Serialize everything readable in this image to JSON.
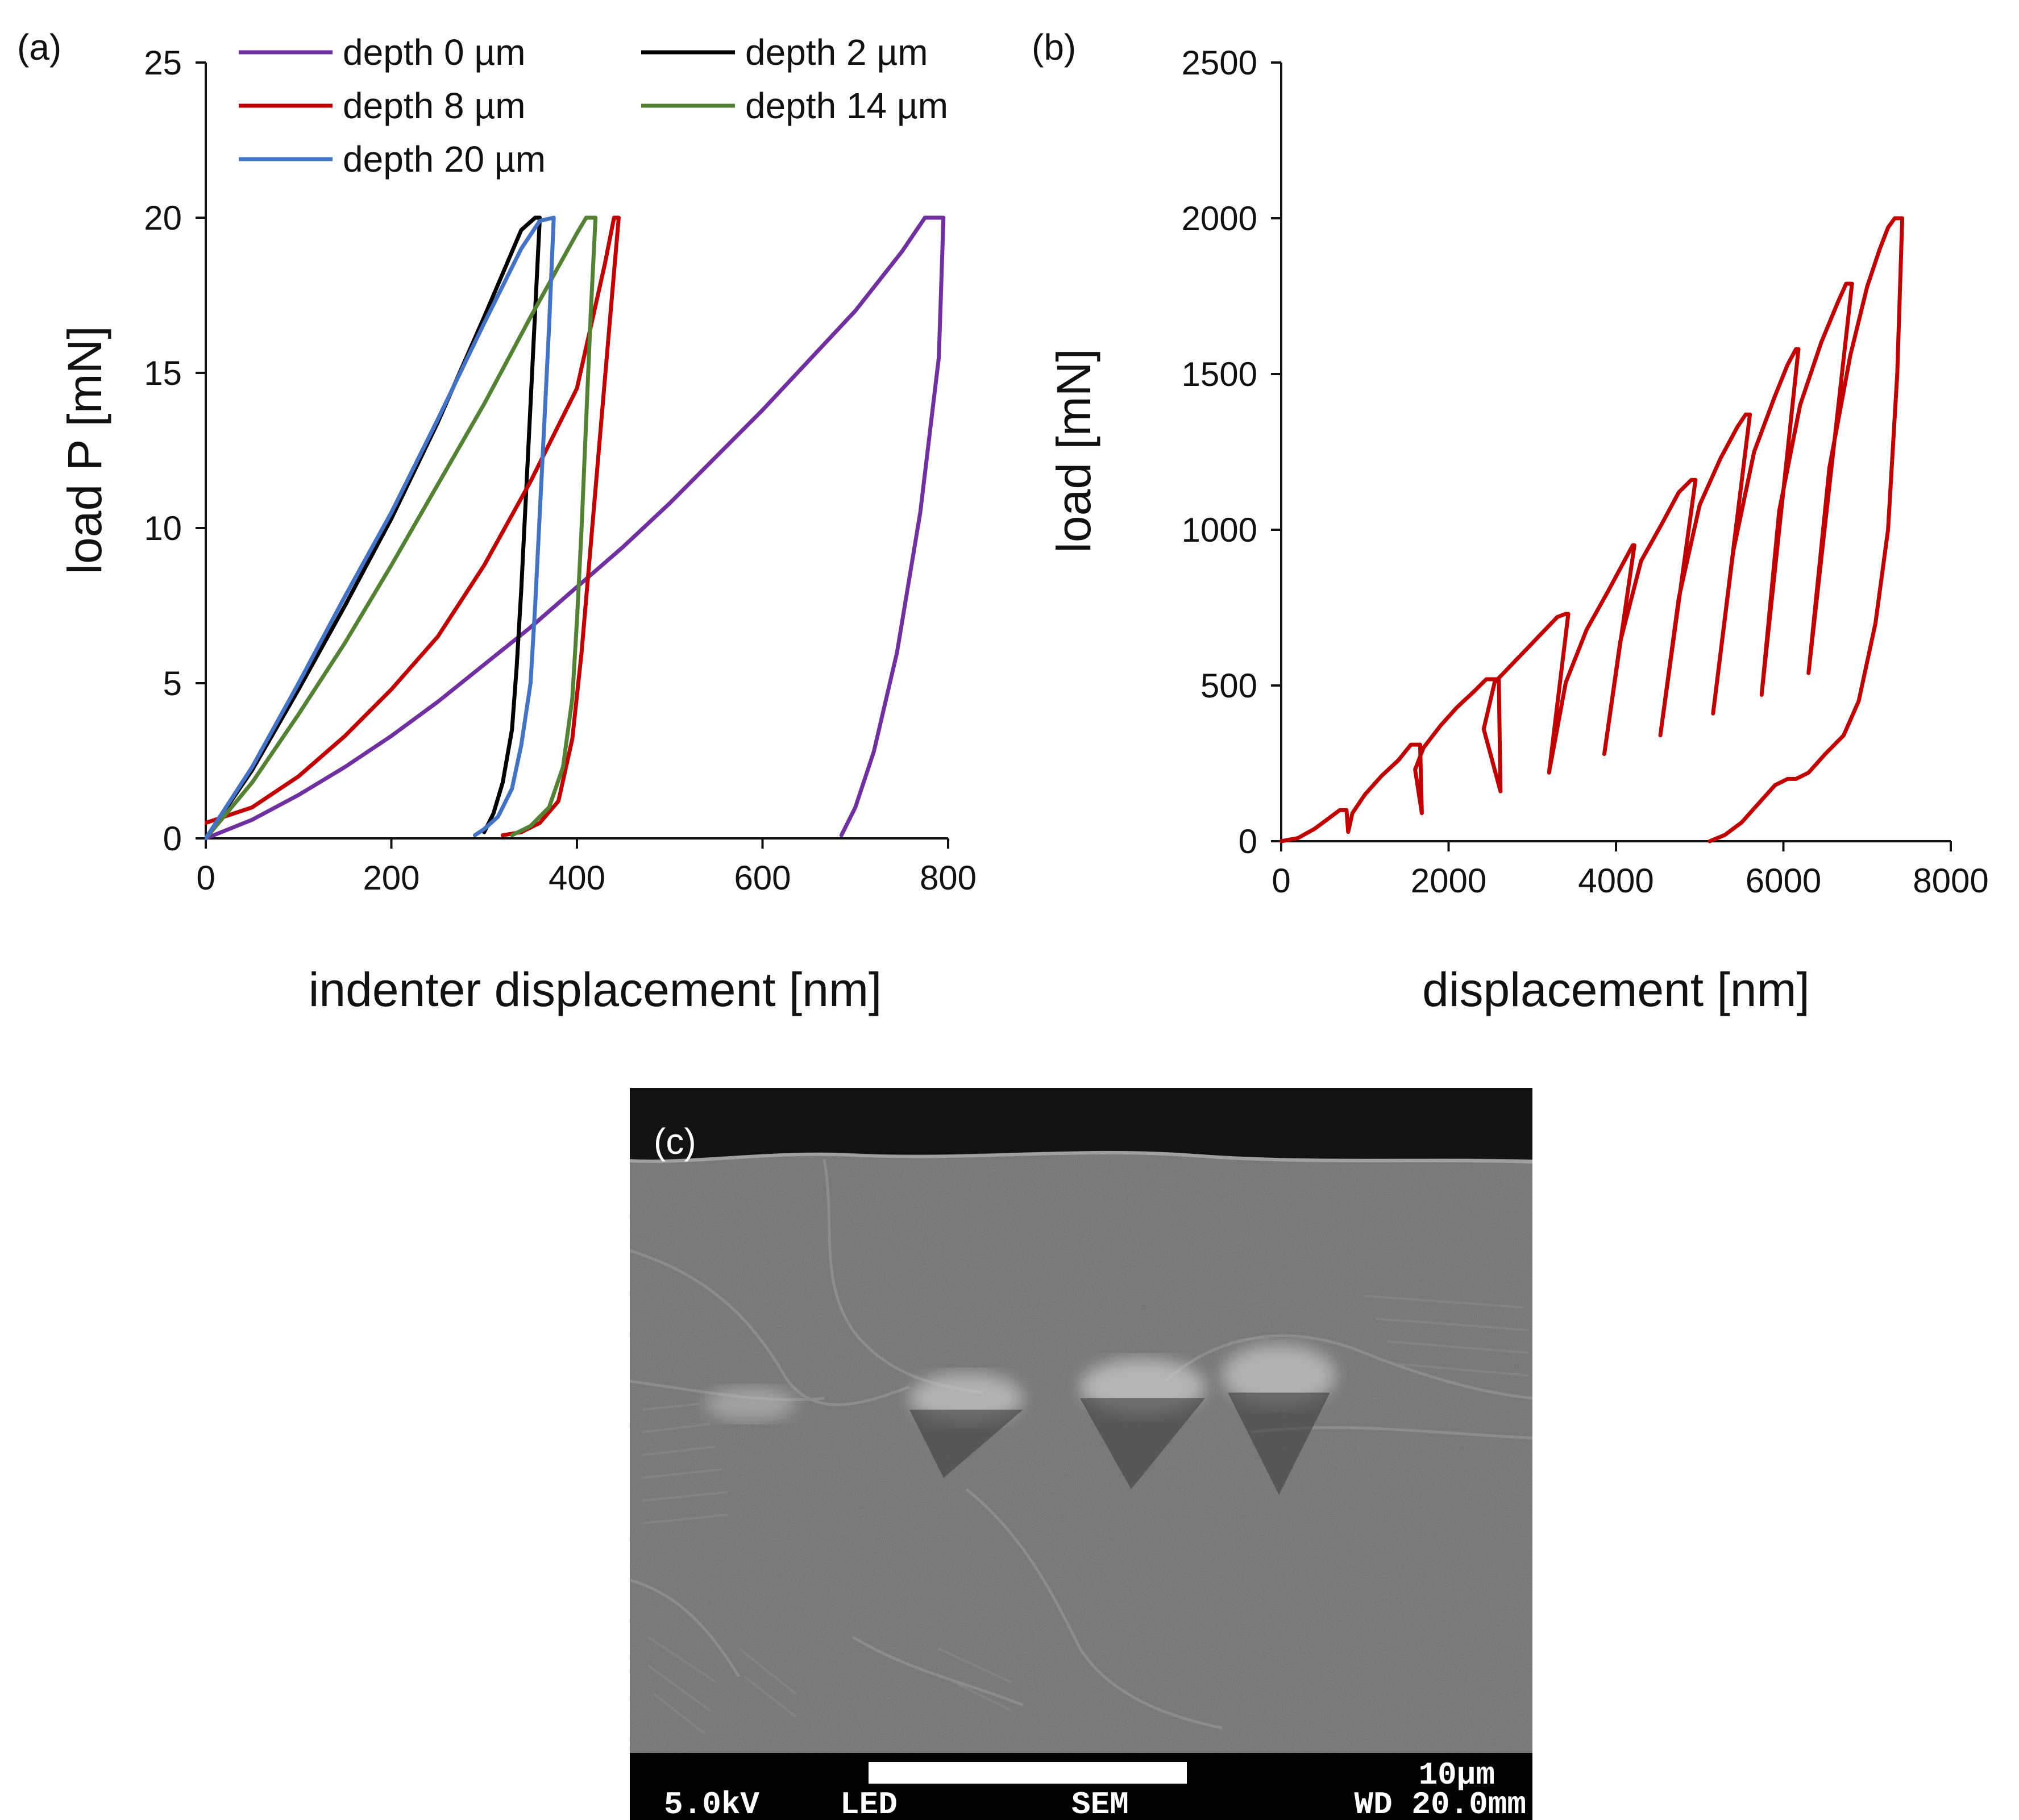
{
  "colors": {
    "depth0": "#7030a0",
    "depth2": "#000000",
    "depth8": "#c00000",
    "depth14": "#548235",
    "depth20": "#4472c4",
    "panel_b": "#c00000"
  },
  "chart_data": [
    {
      "type": "line",
      "panel_label": "(a)",
      "xlabel": "indenter displacement [nm]",
      "ylabel": "load P [mN]",
      "xlim": [
        0,
        800
      ],
      "ylim": [
        0,
        25
      ],
      "xticks": [
        "0",
        "200",
        "400",
        "600",
        "800"
      ],
      "yticks": [
        "0",
        "5",
        "10",
        "15",
        "20",
        "25"
      ],
      "grid": false,
      "legend_position": "top-left",
      "series": [
        {
          "name": "depth 0 µm",
          "color_key": "depth0",
          "x": [
            0,
            50,
            100,
            150,
            200,
            250,
            300,
            350,
            400,
            450,
            500,
            550,
            600,
            650,
            700,
            750,
            775,
            795,
            790,
            770,
            745,
            720,
            700,
            685
          ],
          "y": [
            0,
            0.6,
            1.4,
            2.3,
            3.3,
            4.4,
            5.6,
            6.8,
            8.1,
            9.4,
            10.8,
            12.3,
            13.8,
            15.4,
            17.0,
            18.9,
            20.0,
            20.0,
            15.5,
            10.5,
            6.0,
            2.8,
            1.0,
            0.1
          ]
        },
        {
          "name": "depth 2 µm",
          "color_key": "depth2",
          "x": [
            0,
            50,
            100,
            150,
            200,
            250,
            300,
            340,
            355,
            360,
            355,
            350,
            345,
            340,
            335,
            330,
            320,
            310,
            300
          ],
          "y": [
            0,
            2.2,
            4.8,
            7.5,
            10.3,
            13.4,
            16.8,
            19.6,
            20.0,
            20.0,
            17.0,
            14.0,
            11.0,
            8.0,
            5.5,
            3.5,
            1.8,
            0.8,
            0.2
          ]
        },
        {
          "name": "depth 8 µm",
          "color_key": "depth8",
          "x": [
            0,
            50,
            100,
            150,
            200,
            250,
            300,
            350,
            400,
            430,
            440,
            445,
            435,
            425,
            415,
            405,
            395,
            380,
            360,
            340,
            320
          ],
          "y": [
            0.5,
            1.0,
            2.0,
            3.3,
            4.8,
            6.5,
            8.8,
            11.5,
            14.5,
            18.5,
            20.0,
            20.0,
            16.5,
            13.0,
            9.5,
            6.0,
            3.2,
            1.2,
            0.5,
            0.2,
            0.1
          ]
        },
        {
          "name": "depth 14 µm",
          "color_key": "depth14",
          "x": [
            0,
            50,
            100,
            150,
            200,
            250,
            300,
            350,
            400,
            410,
            420,
            415,
            410,
            405,
            400,
            395,
            385,
            370,
            350,
            330
          ],
          "y": [
            0,
            1.8,
            4.0,
            6.3,
            8.8,
            11.4,
            14.0,
            16.8,
            19.5,
            20.0,
            20.0,
            17.0,
            13.5,
            10.0,
            7.0,
            4.5,
            2.3,
            1.0,
            0.4,
            0.1
          ]
        },
        {
          "name": "depth 20 µm",
          "color_key": "depth20",
          "x": [
            0,
            50,
            100,
            150,
            200,
            250,
            300,
            340,
            360,
            375,
            375,
            370,
            365,
            360,
            355,
            350,
            340,
            330,
            315,
            300,
            290
          ],
          "y": [
            0,
            2.3,
            5.0,
            7.8,
            10.5,
            13.5,
            16.6,
            19.0,
            19.9,
            20.0,
            20.0,
            16.5,
            13.5,
            10.5,
            7.5,
            5.0,
            3.0,
            1.6,
            0.7,
            0.3,
            0.1
          ]
        }
      ]
    },
    {
      "type": "line",
      "panel_label": "(b)",
      "xlabel": "displacement [nm]",
      "ylabel": "load [mN]",
      "xlim": [
        0,
        8000
      ],
      "ylim": [
        0,
        2500
      ],
      "xticks": [
        "0",
        "2000",
        "4000",
        "6000",
        "8000"
      ],
      "yticks": [
        "0",
        "500",
        "1000",
        "1500",
        "2000",
        "2500"
      ],
      "grid": false,
      "series": [
        {
          "color_key": "panel_b",
          "x": [
            0,
            200,
            400,
            600,
            700,
            780,
            800,
            850,
            1000,
            1200,
            1400,
            1550,
            1660,
            1680,
            1600,
            1700,
            1900,
            2100,
            2300,
            2450,
            2600,
            2620,
            2420,
            2550,
            2800,
            3050,
            3300,
            3400,
            3430,
            3200,
            3400,
            3650,
            3900,
            4100,
            4200,
            4220,
            3860,
            4050,
            4300,
            4550,
            4750,
            4900,
            4950,
            4530,
            4750,
            5000,
            5250,
            5450,
            5550,
            5600,
            5160,
            5400,
            5650,
            5900,
            6050,
            6150,
            6180,
            5740,
            5950,
            6200,
            6450,
            6650,
            6750,
            6820,
            6300,
            6550,
            6800,
            7000,
            7150,
            7250,
            7330,
            7400,
            7420,
            7360,
            7250,
            7100,
            6900,
            6720,
            6500,
            6300,
            6150,
            6050,
            5900,
            5700,
            5500,
            5300,
            5120
          ],
          "y": [
            0,
            10,
            40,
            80,
            100,
            100,
            30,
            90,
            150,
            210,
            260,
            310,
            310,
            90,
            230,
            300,
            370,
            430,
            480,
            520,
            520,
            160,
            360,
            510,
            580,
            650,
            720,
            730,
            730,
            220,
            510,
            680,
            800,
            900,
            950,
            950,
            280,
            640,
            900,
            1020,
            1120,
            1160,
            1160,
            340,
            780,
            1080,
            1230,
            1330,
            1370,
            1370,
            410,
            930,
            1250,
            1430,
            1530,
            1580,
            1580,
            470,
            1060,
            1400,
            1600,
            1730,
            1790,
            1790,
            540,
            1200,
            1560,
            1780,
            1900,
            1970,
            2000,
            2000,
            2000,
            1500,
            1000,
            700,
            450,
            340,
            280,
            220,
            200,
            200,
            180,
            120,
            60,
            20,
            0
          ]
        }
      ]
    }
  ],
  "legend": {
    "items": [
      "depth 0 µm",
      "depth 2 µm",
      "depth 8 µm",
      "depth 14 µm",
      "depth 20 µm"
    ]
  },
  "sem": {
    "panel_label": "(c)",
    "scale_label": "10µm",
    "info_kv": "5.0kV",
    "info_detector": "LED",
    "info_mode": "SEM",
    "info_wd": "WD 20.0mm"
  }
}
